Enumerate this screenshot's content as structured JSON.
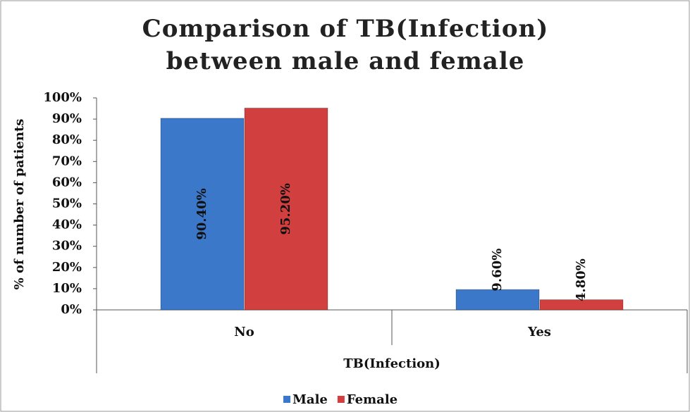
{
  "chart_data": {
    "type": "bar",
    "title": "Comparison of TB(Infection) between male and female",
    "x_label": "TB(Infection)",
    "y_label": "% of number of patients",
    "categories": [
      "No",
      "Yes"
    ],
    "series": [
      {
        "name": "Male",
        "color": "#3b78c9",
        "values": [
          90.4,
          9.6
        ],
        "value_labels": [
          "90.40%",
          "9.60%"
        ]
      },
      {
        "name": "Female",
        "color": "#d1403f",
        "values": [
          95.2,
          4.8
        ],
        "value_labels": [
          "95.20%",
          "4.80%"
        ]
      }
    ],
    "ylim": [
      0,
      100
    ],
    "yticks": [
      {
        "value": 0,
        "label": "0%"
      },
      {
        "value": 10,
        "label": "10%"
      },
      {
        "value": 20,
        "label": "20%"
      },
      {
        "value": 30,
        "label": "30%"
      },
      {
        "value": 40,
        "label": "40%"
      },
      {
        "value": 50,
        "label": "50%"
      },
      {
        "value": 60,
        "label": "60%"
      },
      {
        "value": 70,
        "label": "70%"
      },
      {
        "value": 80,
        "label": "80%"
      },
      {
        "value": 90,
        "label": "90%"
      },
      {
        "value": 100,
        "label": "100%"
      }
    ],
    "legend": "bottom"
  }
}
